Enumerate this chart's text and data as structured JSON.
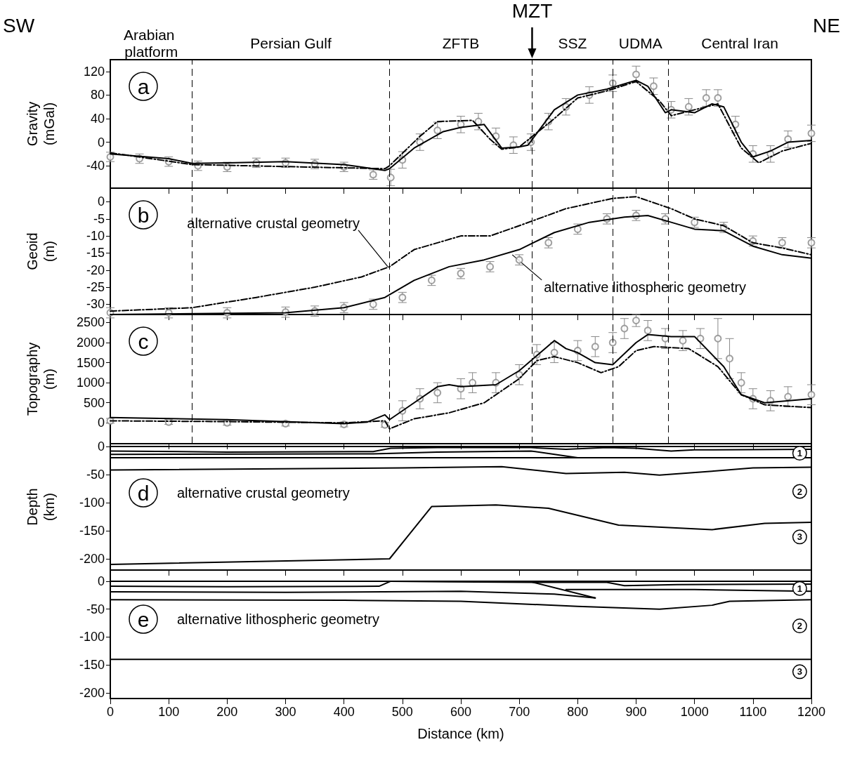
{
  "chart_data": [
    {
      "type": "line",
      "title": "a",
      "ylabel": "Gravity (mGal)",
      "xlim": [
        0,
        1200
      ],
      "xticks": [
        0,
        100,
        200,
        300,
        400,
        500,
        600,
        700,
        800,
        900,
        1000,
        1100,
        1200
      ],
      "ylim": [
        -78,
        140
      ],
      "yticks": [
        -40,
        0,
        40,
        80,
        120
      ],
      "tick_labels": "y",
      "grid": false,
      "annotations": [
        "SW",
        "NE",
        "Arabian platform",
        "Persian Gulf",
        "ZFTB",
        "SSZ",
        "UDMA",
        "Central Iran"
      ],
      "ref_lines": [
        {
          "axis": "x",
          "value": 140,
          "line_style": "dashed"
        },
        {
          "axis": "x",
          "value": 478,
          "line_style": "dashed"
        },
        {
          "axis": "x",
          "value": 722,
          "line_style": "dashed",
          "label": "MZT"
        },
        {
          "axis": "x",
          "value": 860,
          "line_style": "dashed"
        },
        {
          "axis": "x",
          "value": 955,
          "line_style": "dashed"
        }
      ],
      "series": [
        {
          "type": "scatter",
          "marker": "circle",
          "color": "#888888",
          "x": [
            0,
            50,
            100,
            150,
            200,
            250,
            300,
            350,
            400,
            450,
            480,
            500,
            530,
            560,
            600,
            630,
            660,
            690,
            720,
            750,
            780,
            820,
            860,
            900,
            930,
            960,
            990,
            1020,
            1040,
            1070,
            1100,
            1130,
            1160,
            1200
          ],
          "values": [
            -25,
            -28,
            -33,
            -40,
            -42,
            -35,
            -35,
            -37,
            -42,
            -55,
            -60,
            -30,
            0,
            20,
            30,
            35,
            10,
            -5,
            0,
            35,
            60,
            80,
            100,
            115,
            95,
            55,
            60,
            75,
            75,
            30,
            -20,
            -20,
            5,
            15
          ],
          "errors": [
            8,
            8,
            8,
            8,
            8,
            8,
            8,
            8,
            8,
            8,
            14,
            14,
            14,
            14,
            14,
            14,
            14,
            14,
            14,
            14,
            14,
            14,
            14,
            14,
            14,
            14,
            14,
            14,
            14,
            14,
            14,
            14,
            14,
            14
          ]
        },
        {
          "type": "line",
          "marker": "none",
          "line_style": "solid",
          "color": "#000000",
          "x": [
            0,
            100,
            140,
            200,
            300,
            400,
            470,
            478,
            520,
            570,
            600,
            640,
            670,
            700,
            715,
            760,
            800,
            850,
            900,
            920,
            950,
            960,
            1000,
            1030,
            1050,
            1080,
            1100,
            1130,
            1160,
            1200
          ],
          "values": [
            -20,
            -28,
            -36,
            -35,
            -33,
            -38,
            -48,
            -45,
            -10,
            18,
            25,
            30,
            -10,
            -8,
            -5,
            55,
            80,
            90,
            105,
            95,
            50,
            55,
            50,
            65,
            60,
            0,
            -25,
            -15,
            0,
            3
          ]
        },
        {
          "type": "line",
          "marker": "none",
          "line_style": "dashed",
          "color": "#000000",
          "x": [
            0,
            140,
            470,
            478,
            530,
            560,
            620,
            650,
            670,
            700,
            760,
            800,
            850,
            900,
            940,
            960,
            1000,
            1040,
            1080,
            1110,
            1150,
            1200
          ],
          "values": [
            -18,
            -38,
            -45,
            -40,
            10,
            35,
            37,
            5,
            -12,
            -8,
            40,
            75,
            87,
            103,
            70,
            45,
            55,
            65,
            -10,
            -35,
            -15,
            -2
          ]
        }
      ]
    },
    {
      "type": "line",
      "title": "b",
      "ylabel": "Geoid (m)",
      "xlim": [
        0,
        1200
      ],
      "xticks": [
        0,
        100,
        200,
        300,
        400,
        500,
        600,
        700,
        800,
        900,
        1000,
        1100,
        1200
      ],
      "ylim": [
        -33,
        4
      ],
      "yticks": [
        -30,
        -25,
        -20,
        -15,
        -10,
        -5,
        0
      ],
      "tick_labels": "y",
      "grid": false,
      "annotations": [
        {
          "text": "alternative crustal geometry",
          "x": 475,
          "y": -19
        },
        {
          "text": "alternative lithospheric geometry",
          "x": 688,
          "y": -15.5
        }
      ],
      "ref_lines": [
        {
          "axis": "x",
          "value": 140,
          "line_style": "dashed"
        },
        {
          "axis": "x",
          "value": 478,
          "line_style": "dashed"
        },
        {
          "axis": "x",
          "value": 722,
          "line_style": "dashed"
        },
        {
          "axis": "x",
          "value": 860,
          "line_style": "dashed"
        },
        {
          "axis": "x",
          "value": 955,
          "line_style": "dashed"
        }
      ],
      "series": [
        {
          "type": "scatter",
          "marker": "circle",
          "color": "#888888",
          "x": [
            0,
            100,
            200,
            300,
            350,
            400,
            450,
            500,
            550,
            600,
            650,
            700,
            750,
            800,
            850,
            900,
            950,
            1000,
            1050,
            1100,
            1150,
            1200
          ],
          "values": [
            -32.5,
            -32.5,
            -32.5,
            -32.3,
            -32,
            -31,
            -30,
            -28,
            -23,
            -21,
            -19,
            -17,
            -12,
            -8,
            -5,
            -4,
            -5,
            -6,
            -7.5,
            -11.5,
            -12,
            -12
          ],
          "errors": [
            1.5,
            1.5,
            1.5,
            1.5,
            1.5,
            1.5,
            1.5,
            1.5,
            1.5,
            1.5,
            1.5,
            1.5,
            1.5,
            1.5,
            1.5,
            1.5,
            1.5,
            1.5,
            1.5,
            1.5,
            1.5,
            1.5
          ]
        },
        {
          "type": "line",
          "marker": "none",
          "line_style": "solid",
          "color": "#000000",
          "x": [
            0,
            300,
            400,
            470,
            520,
            580,
            640,
            700,
            760,
            820,
            880,
            920,
            960,
            1000,
            1050,
            1100,
            1150,
            1200
          ],
          "values": [
            -33,
            -32.5,
            -31,
            -28,
            -23,
            -19,
            -17,
            -14,
            -9,
            -6,
            -4.5,
            -4,
            -6,
            -8,
            -8.5,
            -13,
            -15.5,
            -16.5
          ]
        },
        {
          "type": "line",
          "marker": "none",
          "line_style": "dashed",
          "color": "#000000",
          "x": [
            0,
            140,
            250,
            350,
            430,
            478,
            520,
            600,
            650,
            700,
            780,
            860,
            900,
            960,
            1000,
            1050,
            1100,
            1150,
            1200
          ],
          "values": [
            -32,
            -31,
            -28,
            -25,
            -22,
            -19,
            -14,
            -10,
            -10,
            -7,
            -2,
            1,
            1.5,
            -2,
            -5,
            -7,
            -12,
            -13.5,
            -15.5
          ]
        }
      ]
    },
    {
      "type": "line",
      "title": "c",
      "ylabel": "Topography (m)",
      "xlim": [
        0,
        1200
      ],
      "xticks": [
        0,
        100,
        200,
        300,
        400,
        500,
        600,
        700,
        800,
        900,
        1000,
        1100,
        1200
      ],
      "ylim": [
        -520,
        2700
      ],
      "yticks": [
        0,
        500,
        1000,
        1500,
        2000,
        2500
      ],
      "tick_labels": "y",
      "grid": false,
      "ref_lines": [
        {
          "axis": "x",
          "value": 140,
          "line_style": "dashed"
        },
        {
          "axis": "x",
          "value": 478,
          "line_style": "dashed"
        },
        {
          "axis": "x",
          "value": 722,
          "line_style": "dashed"
        },
        {
          "axis": "x",
          "value": 860,
          "line_style": "dashed"
        },
        {
          "axis": "x",
          "value": 955,
          "line_style": "dashed"
        }
      ],
      "series": [
        {
          "type": "scatter",
          "marker": "circle",
          "color": "#888888",
          "x": [
            0,
            100,
            200,
            300,
            400,
            470,
            500,
            530,
            560,
            600,
            620,
            660,
            700,
            730,
            760,
            800,
            830,
            860,
            880,
            900,
            920,
            950,
            980,
            1010,
            1040,
            1060,
            1080,
            1100,
            1130,
            1160,
            1200
          ],
          "values": [
            50,
            20,
            0,
            -20,
            -40,
            -50,
            300,
            600,
            750,
            850,
            1000,
            1000,
            1200,
            1700,
            1750,
            1800,
            1900,
            2000,
            2350,
            2550,
            2300,
            2100,
            2050,
            2100,
            2100,
            1600,
            1000,
            600,
            550,
            650,
            700
          ],
          "errors": [
            60,
            60,
            60,
            60,
            60,
            60,
            250,
            250,
            250,
            250,
            250,
            250,
            250,
            250,
            250,
            250,
            250,
            250,
            250,
            150,
            250,
            250,
            250,
            250,
            500,
            500,
            250,
            250,
            250,
            250,
            250
          ]
        },
        {
          "type": "line",
          "marker": "none",
          "line_style": "solid",
          "color": "#000000",
          "x": [
            0,
            200,
            400,
            440,
            470,
            478,
            520,
            560,
            580,
            600,
            660,
            700,
            740,
            760,
            780,
            800,
            830,
            860,
            900,
            920,
            960,
            1000,
            1050,
            1080,
            1120,
            1200
          ],
          "values": [
            130,
            80,
            -20,
            20,
            200,
            80,
            500,
            900,
            950,
            900,
            950,
            1300,
            1800,
            2050,
            1850,
            1750,
            1500,
            1450,
            2000,
            2200,
            2150,
            2150,
            1400,
            700,
            500,
            600
          ]
        },
        {
          "type": "line",
          "marker": "none",
          "line_style": "dashed",
          "color": "#000000",
          "x": [
            0,
            200,
            400,
            470,
            478,
            520,
            580,
            640,
            700,
            730,
            760,
            800,
            840,
            870,
            900,
            930,
            990,
            1040,
            1080,
            1120,
            1200
          ],
          "values": [
            50,
            30,
            0,
            50,
            -150,
            100,
            250,
            500,
            1100,
            1550,
            1650,
            1500,
            1250,
            1400,
            1800,
            1900,
            1850,
            1400,
            700,
            450,
            380
          ]
        }
      ]
    },
    {
      "type": "line",
      "title": "d",
      "subtitle": "alternative crustal geometry",
      "ylabel": "Depth (km)",
      "xlim": [
        0,
        1200
      ],
      "xticks": [
        0,
        100,
        200,
        300,
        400,
        500,
        600,
        700,
        800,
        900,
        1000,
        1100,
        1200
      ],
      "ylim": [
        -220,
        5
      ],
      "yticks": [
        -200,
        -150,
        -100,
        -50,
        0
      ],
      "tick_labels": "y",
      "grid": false,
      "annotations": [
        {
          "text": "1",
          "x": 1180,
          "y": -12
        },
        {
          "text": "2",
          "x": 1180,
          "y": -80
        },
        {
          "text": "3",
          "x": 1180,
          "y": -161
        }
      ],
      "series": [
        {
          "marker": "none",
          "line_style": "solid",
          "color": "#000000",
          "x": [
            0,
            1200
          ],
          "values": [
            0,
            0
          ]
        },
        {
          "marker": "none",
          "line_style": "solid",
          "color": "#000000",
          "x": [
            0,
            200,
            450,
            480,
            560,
            720,
            780,
            850,
            900,
            960,
            1000,
            1200
          ],
          "values": [
            -8,
            -10,
            -9,
            -3,
            -2,
            -2,
            -5,
            -2,
            -3,
            -8,
            -6,
            -5
          ]
        },
        {
          "marker": "none",
          "line_style": "solid",
          "color": "#000000",
          "x": [
            0,
            450,
            560,
            720,
            800
          ],
          "values": [
            -14,
            -13,
            -10,
            -8,
            -20
          ]
        },
        {
          "marker": "none",
          "line_style": "solid",
          "color": "#000000",
          "x": [
            0,
            1200
          ],
          "values": [
            -20,
            -20
          ]
        },
        {
          "marker": "none",
          "line_style": "solid",
          "color": "#000000",
          "x": [
            0,
            500,
            670,
            780,
            880,
            940,
            1030,
            1100,
            1200
          ],
          "values": [
            -42,
            -38,
            -36,
            -48,
            -46,
            -51,
            -44,
            -38,
            -37
          ]
        },
        {
          "marker": "none",
          "line_style": "solid",
          "color": "#000000",
          "x": [
            0,
            478,
            550,
            660,
            750,
            870,
            1030,
            1120,
            1200
          ],
          "values": [
            -210,
            -200,
            -107,
            -104,
            -110,
            -140,
            -148,
            -137,
            -135
          ]
        }
      ]
    },
    {
      "type": "line",
      "title": "e",
      "subtitle": "alternative lithospheric geometry",
      "xlabel": "Distance (km)",
      "xlim": [
        0,
        1200
      ],
      "xticks": [
        0,
        100,
        200,
        300,
        400,
        500,
        600,
        700,
        800,
        900,
        1000,
        1100,
        1200
      ],
      "ylim": [
        -210,
        20
      ],
      "yticks": [
        -200,
        -150,
        -100,
        -50,
        0
      ],
      "grid": false,
      "annotations": [
        {
          "text": "1",
          "x": 1180,
          "y": -13
        },
        {
          "text": "2",
          "x": 1180,
          "y": -80
        },
        {
          "text": "3",
          "x": 1180,
          "y": -162
        }
      ],
      "series": [
        {
          "marker": "none",
          "line_style": "solid",
          "color": "#000000",
          "x": [
            0,
            1200
          ],
          "values": [
            0,
            0
          ]
        },
        {
          "marker": "none",
          "line_style": "solid",
          "color": "#000000",
          "x": [
            0,
            200,
            460,
            480,
            580,
            720,
            850,
            880,
            970,
            1200
          ],
          "values": [
            -9,
            -10,
            -9,
            0,
            -1,
            -2,
            -2,
            -8,
            -6,
            -5
          ]
        },
        {
          "marker": "none",
          "line_style": "solid",
          "color": "#000000",
          "x": [
            0,
            300,
            600,
            760,
            830
          ],
          "values": [
            -19,
            -20,
            -18,
            -23,
            -30
          ]
        },
        {
          "marker": "none",
          "line_style": "solid",
          "color": "#000000",
          "x": [
            720,
            830
          ],
          "values": [
            -1,
            -30
          ]
        },
        {
          "marker": "none",
          "line_style": "solid",
          "color": "#000000",
          "x": [
            780,
            1000,
            1200
          ],
          "values": [
            -15,
            -15,
            -18
          ]
        },
        {
          "marker": "none",
          "line_style": "solid",
          "color": "#000000",
          "x": [
            0,
            400,
            600,
            800,
            940,
            1030,
            1060,
            1200
          ],
          "values": [
            -33,
            -34,
            -36,
            -45,
            -50,
            -43,
            -36,
            -33
          ]
        },
        {
          "marker": "none",
          "line_style": "solid",
          "color": "#000000",
          "x": [
            0,
            1200
          ],
          "values": [
            -140,
            -140
          ]
        }
      ]
    }
  ]
}
